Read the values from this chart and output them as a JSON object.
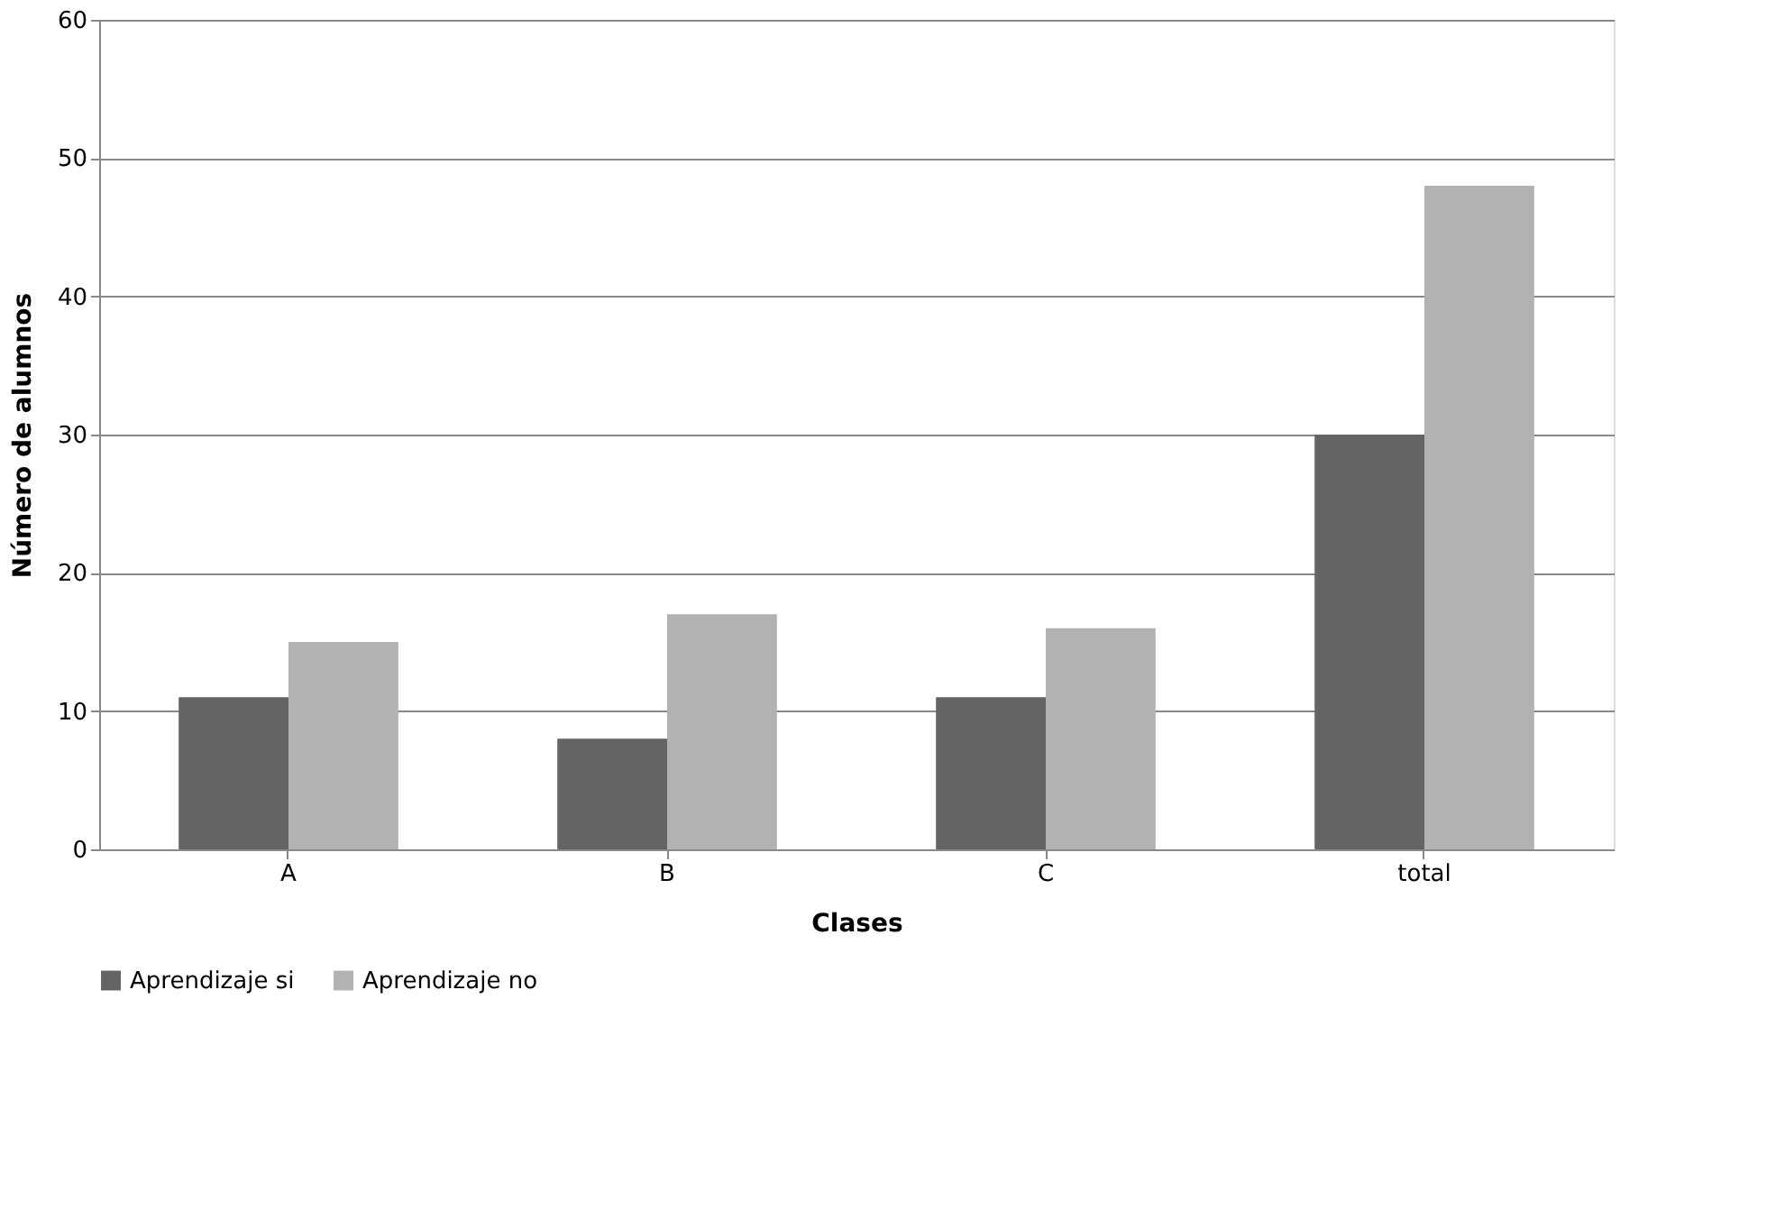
{
  "chart_data": {
    "type": "bar",
    "xlabel": "Clases",
    "ylabel": "Número de alumnos",
    "categories": [
      "A",
      "B",
      "C",
      "total"
    ],
    "series": [
      {
        "name": "Aprendizaje si",
        "color": "#646464",
        "values": [
          11,
          8,
          11,
          30
        ]
      },
      {
        "name": "Aprendizaje no",
        "color": "#b2b2b2",
        "values": [
          15,
          17,
          16,
          48
        ]
      }
    ],
    "ylim": [
      0,
      60
    ],
    "yticks": [
      0,
      10,
      20,
      30,
      40,
      50,
      60
    ],
    "grid": "y",
    "legend": "bottom"
  }
}
